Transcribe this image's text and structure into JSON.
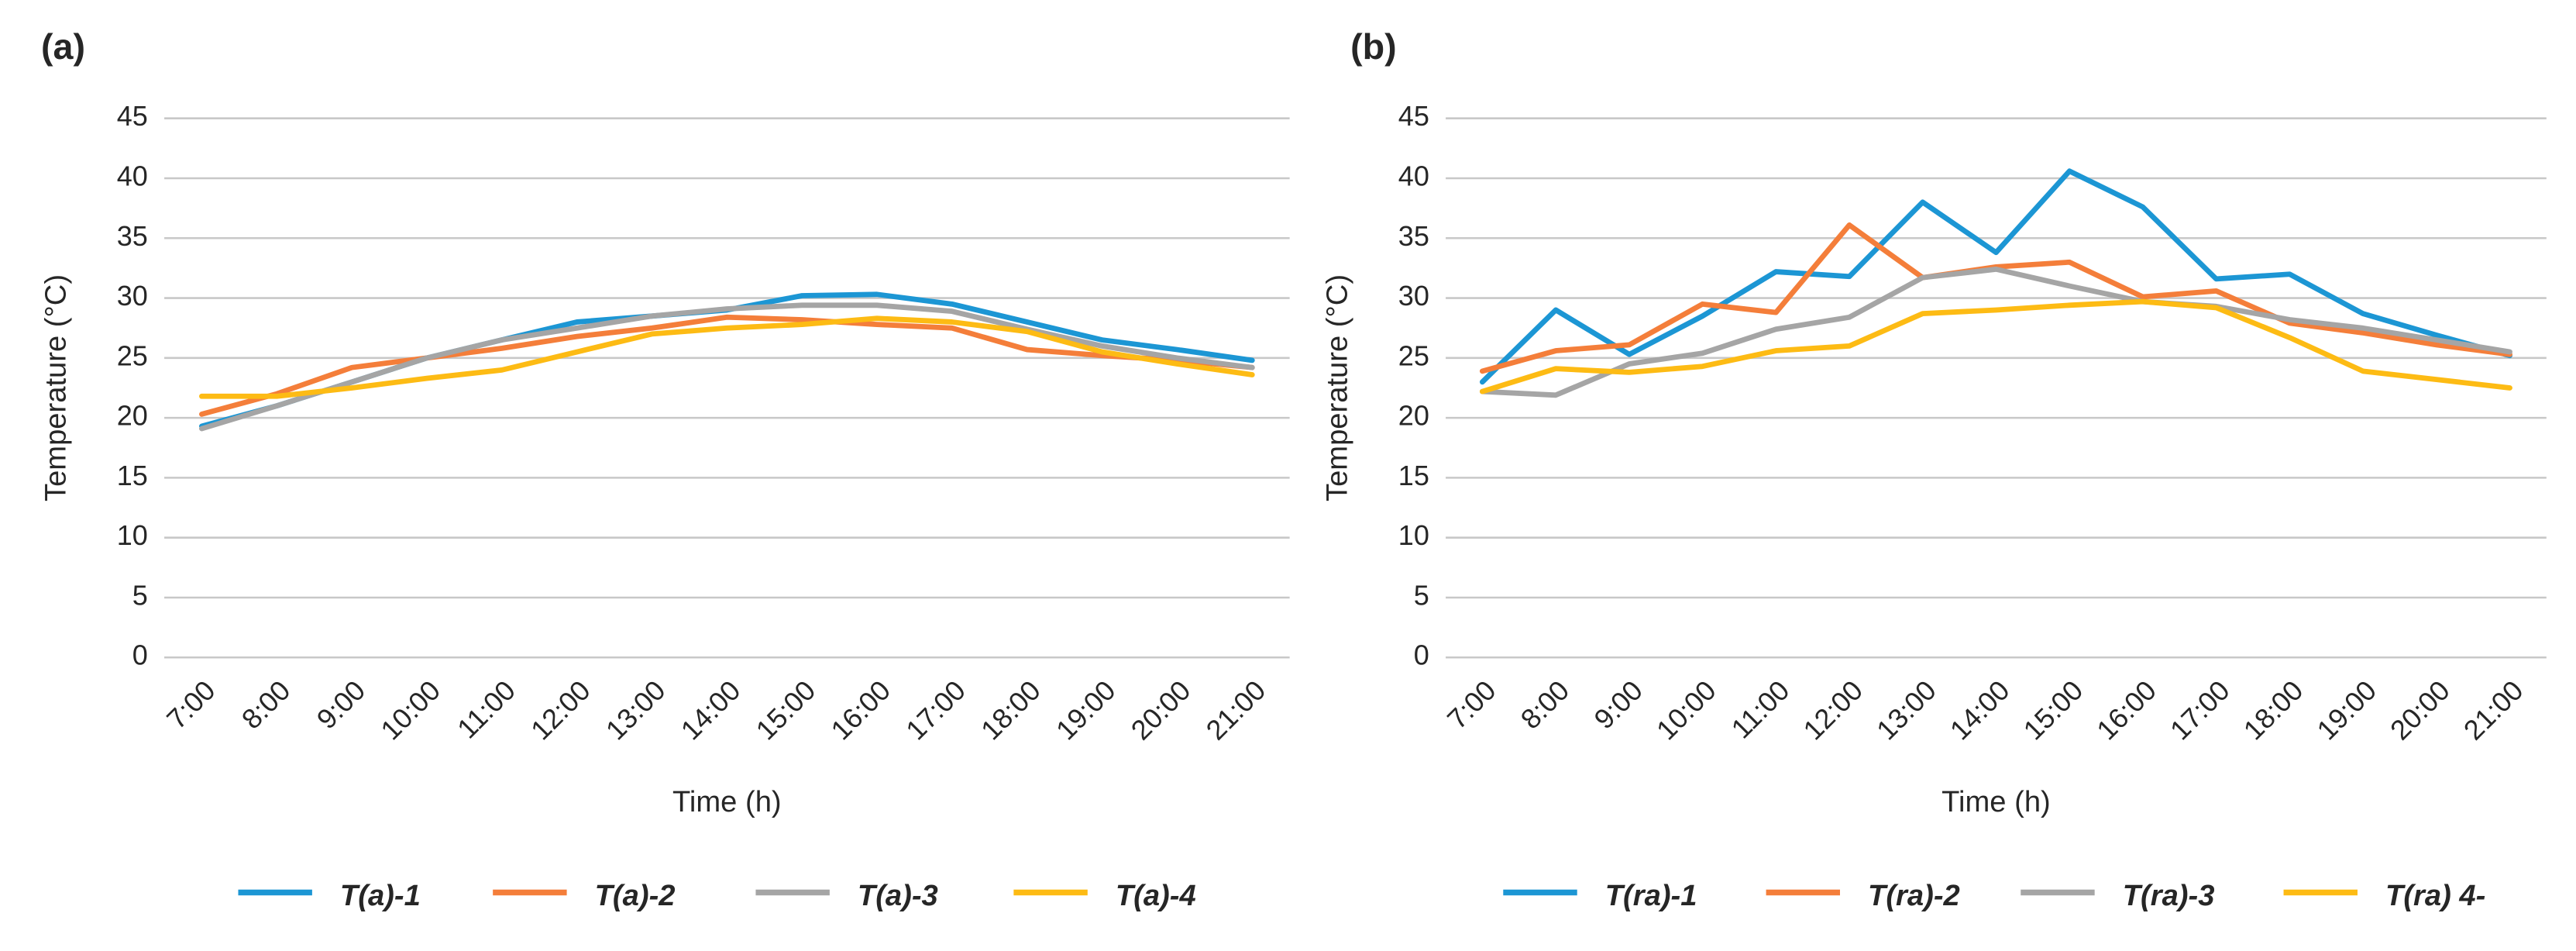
{
  "chart_data": [
    {
      "type": "line",
      "title": "(a)",
      "y_label": "Temperature (°C)",
      "x_label": "Time (h)",
      "categories": [
        "7:00",
        "8:00",
        "9:00",
        "10:00",
        "11:00",
        "12:00",
        "13:00",
        "14:00",
        "15:00",
        "16:00",
        "17:00",
        "18:00",
        "19:00",
        "20:00",
        "21:00"
      ],
      "ylim": [
        0,
        45
      ],
      "yticks": [
        0,
        5,
        10,
        15,
        20,
        25,
        30,
        35,
        40,
        45
      ],
      "grid": true,
      "series": [
        {
          "name": "T(a)-1",
          "color": "#1c96d4",
          "values": [
            19.3,
            21,
            23,
            25,
            26.5,
            28,
            28.5,
            29,
            30.2,
            30.3,
            29.5,
            28,
            26.5,
            25.7,
            24.8
          ]
        },
        {
          "name": "T(a)-2",
          "color": "#f47e3a",
          "values": [
            20.3,
            22,
            24.2,
            25,
            25.8,
            26.8,
            27.5,
            28.4,
            28.2,
            27.8,
            27.5,
            25.7,
            25.2,
            24.8,
            24.2
          ]
        },
        {
          "name": "T(a)-3",
          "color": "#a5a5a5",
          "values": [
            19.1,
            21,
            23,
            25,
            26.5,
            27.5,
            28.5,
            29.1,
            29.4,
            29.4,
            28.9,
            27.4,
            26,
            25,
            24.2
          ]
        },
        {
          "name": "T(a)-4",
          "color": "#fdbb14",
          "values": [
            21.8,
            21.8,
            22.5,
            23.3,
            24,
            25.5,
            27,
            27.5,
            27.8,
            28.3,
            28,
            27.2,
            25.5,
            24.5,
            23.6
          ]
        }
      ]
    },
    {
      "type": "line",
      "title": "(b)",
      "y_label": "Temperature (°C)",
      "x_label": "Time (h)",
      "categories": [
        "7:00",
        "8:00",
        "9:00",
        "10:00",
        "11:00",
        "12:00",
        "13:00",
        "14:00",
        "15:00",
        "16:00",
        "17:00",
        "18:00",
        "19:00",
        "20:00",
        "21:00"
      ],
      "ylim": [
        0,
        45
      ],
      "yticks": [
        0,
        5,
        10,
        15,
        20,
        25,
        30,
        35,
        40,
        45
      ],
      "grid": true,
      "series": [
        {
          "name": "T(ra)-1",
          "color": "#1c96d4",
          "values": [
            23,
            29,
            25.3,
            28.5,
            32.2,
            31.8,
            38,
            33.8,
            40.6,
            37.6,
            31.6,
            32,
            28.7,
            26.9,
            25.2
          ]
        },
        {
          "name": "T(ra)-2",
          "color": "#f47e3a",
          "values": [
            23.9,
            25.6,
            26.1,
            29.5,
            28.8,
            36.1,
            31.7,
            32.6,
            33,
            30.1,
            30.6,
            27.9,
            27.1,
            26.1,
            25.3
          ]
        },
        {
          "name": "T(ra)-3",
          "color": "#a5a5a5",
          "values": [
            22.2,
            21.9,
            24.5,
            25.4,
            27.4,
            28.4,
            31.7,
            32.4,
            31,
            29.7,
            29.3,
            28.2,
            27.5,
            26.5,
            25.5
          ]
        },
        {
          "name": "T(ra) 4-",
          "color": "#fdbb14",
          "values": [
            22.2,
            24.1,
            23.8,
            24.3,
            25.6,
            26,
            28.7,
            29,
            29.4,
            29.7,
            29.2,
            26.7,
            23.9,
            23.2,
            22.5
          ]
        }
      ]
    }
  ]
}
